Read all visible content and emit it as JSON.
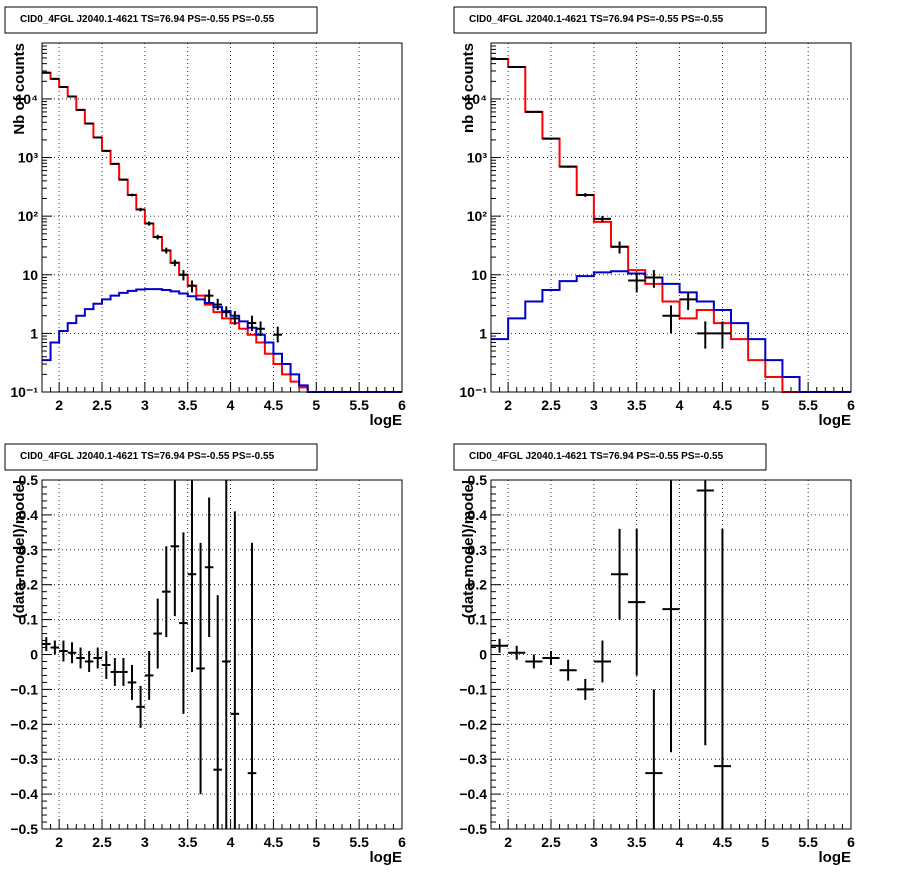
{
  "panel_title": "CID0_4FGL J2040.1-4621 TS=76.94 PS=-0.55 PS=-0.55",
  "chart_data": [
    {
      "type": "line",
      "title": "CID0_4FGL J2040.1-4621 TS=76.94 PS=-0.55 PS=-0.55",
      "xlabel": "logE",
      "ylabel": "Nb of counts",
      "xlim": [
        1.8,
        6
      ],
      "ylim": [
        0.1,
        90000
      ],
      "yscale": "log",
      "grid": true,
      "x_ticks": [
        2,
        2.5,
        3,
        3.5,
        4,
        4.5,
        5,
        5.5,
        6
      ],
      "x_tick_labels": [
        "2",
        "2.5",
        "3",
        "3.5",
        "4",
        "4.5",
        "5",
        "5.5",
        "6"
      ],
      "y_ticks": [
        0.1,
        1,
        10,
        100,
        1000,
        10000
      ],
      "y_tick_labels": [
        "10⁻¹",
        "1",
        "10",
        "10²",
        "10³",
        "10⁴"
      ],
      "bin_edges": [
        1.8,
        1.9,
        2.0,
        2.1,
        2.2,
        2.3,
        2.4,
        2.5,
        2.6,
        2.7,
        2.8,
        2.9,
        3.0,
        3.1,
        3.2,
        3.3,
        3.4,
        3.5,
        3.6,
        3.7,
        3.8,
        3.9,
        4.0,
        4.1,
        4.2,
        4.3,
        4.4,
        4.5,
        4.6,
        4.7,
        4.8,
        4.9,
        5.0,
        5.1,
        5.2,
        5.3,
        5.4,
        5.5,
        5.6,
        5.7,
        5.8,
        5.9,
        6.0
      ],
      "series": [
        {
          "color": "#ff0000",
          "style": "step",
          "values": [
            28000,
            22000,
            16000,
            11000,
            6500,
            3800,
            2200,
            1300,
            780,
            420,
            230,
            130,
            75,
            44,
            26,
            16,
            10,
            6.5,
            4.4,
            3.1,
            2.3,
            1.8,
            1.5,
            1.2,
            0.95,
            0.7,
            0.45,
            0.3,
            0.2,
            0.15,
            0.12,
            0.1,
            0.1,
            0.1,
            0.1,
            0.1,
            0.1,
            0.1,
            0.1,
            0.1,
            0.1,
            0.1
          ]
        },
        {
          "color": "#0000cc",
          "style": "step",
          "values": [
            0.35,
            0.7,
            1.1,
            1.5,
            2.0,
            2.6,
            3.2,
            3.8,
            4.4,
            4.9,
            5.3,
            5.6,
            5.7,
            5.7,
            5.5,
            5.2,
            4.8,
            4.3,
            3.8,
            3.3,
            2.8,
            2.4,
            2.0,
            1.6,
            1.25,
            0.95,
            0.7,
            0.45,
            0.3,
            0.2,
            0.13,
            0.1,
            0.1,
            0.1,
            0.1,
            0.1,
            0.1,
            0.1,
            0.1,
            0.1,
            0.1,
            0.1
          ]
        },
        {
          "color": "#000000",
          "style": "errorbars",
          "x": [
            1.85,
            1.95,
            2.05,
            2.15,
            2.25,
            2.35,
            2.45,
            2.55,
            2.65,
            2.75,
            2.85,
            2.95,
            3.05,
            3.15,
            3.25,
            3.35,
            3.45,
            3.55,
            3.75,
            3.85,
            3.95,
            4.05,
            4.25,
            4.35,
            4.55
          ],
          "values": [
            28000,
            22000,
            16000,
            11000,
            6500,
            3800,
            2200,
            1300,
            780,
            420,
            230,
            130,
            75,
            44,
            26,
            16,
            10,
            6.5,
            4.4,
            3.1,
            2.3,
            1.8,
            1.5,
            1.2,
            0.95
          ],
          "y_err_low": [
            27600,
            21600,
            15800,
            10850,
            6400,
            3720,
            2150,
            1265,
            755,
            402,
            218,
            121,
            69,
            40,
            23,
            14,
            8,
            5,
            3.4,
            2.5,
            1.9,
            1.4,
            1.1,
            0.9,
            0.7
          ],
          "y_err_high": [
            28400,
            22400,
            16200,
            11150,
            6600,
            3880,
            2250,
            1335,
            805,
            438,
            242,
            139,
            81,
            48,
            29,
            18,
            12,
            8,
            5.6,
            3.9,
            2.9,
            2.4,
            2.0,
            1.6,
            1.3
          ]
        }
      ]
    },
    {
      "type": "line",
      "title": "CID0_4FGL J2040.1-4621 TS=76.94 PS=-0.55 PS=-0.55",
      "xlabel": "logE",
      "ylabel": "nb of counts",
      "xlim": [
        1.8,
        6
      ],
      "ylim": [
        0.1,
        90000
      ],
      "yscale": "log",
      "grid": true,
      "x_ticks": [
        2,
        2.5,
        3,
        3.5,
        4,
        4.5,
        5,
        5.5,
        6
      ],
      "x_tick_labels": [
        "2",
        "2.5",
        "3",
        "3.5",
        "4",
        "4.5",
        "5",
        "5.5",
        "6"
      ],
      "y_ticks": [
        0.1,
        1,
        10,
        100,
        1000,
        10000
      ],
      "y_tick_labels": [
        "10⁻¹",
        "1",
        "10",
        "10²",
        "10³",
        "10⁴"
      ],
      "bin_edges": [
        1.8,
        2.0,
        2.2,
        2.4,
        2.6,
        2.8,
        3.0,
        3.2,
        3.4,
        3.6,
        3.8,
        4.0,
        4.2,
        4.4,
        4.6,
        4.8,
        5.0,
        5.2,
        5.4,
        5.6,
        5.8,
        6.0
      ],
      "series": [
        {
          "color": "#ff0000",
          "style": "step",
          "values": [
            48000,
            35000,
            6000,
            2100,
            700,
            230,
            80,
            30,
            12,
            7,
            3.5,
            1.8,
            2.5,
            1.5,
            0.8,
            0.35,
            0.18,
            0.1,
            0.1,
            0.1,
            0.1
          ]
        },
        {
          "color": "#0000cc",
          "style": "step",
          "values": [
            0.8,
            1.8,
            3.5,
            5.5,
            7.8,
            9.5,
            11,
            11.5,
            10.5,
            9,
            7,
            5,
            3.5,
            2.5,
            1.5,
            0.8,
            0.35,
            0.18,
            0.1,
            0.1,
            0.1
          ]
        },
        {
          "color": "#000000",
          "style": "errorbars",
          "x": [
            1.9,
            2.1,
            2.3,
            2.5,
            2.7,
            2.9,
            3.1,
            3.3,
            3.5,
            3.7,
            3.9,
            4.1,
            4.3,
            4.5
          ],
          "values": [
            48000,
            35000,
            6000,
            2100,
            700,
            230,
            90,
            30,
            8,
            9,
            2,
            3.8,
            1.0,
            1.0
          ],
          "y_err_low": [
            47600,
            34700,
            5900,
            2050,
            670,
            213,
            79,
            23,
            5,
            6,
            1,
            2.5,
            0.55,
            0.55
          ],
          "y_err_high": [
            48400,
            35300,
            6100,
            2150,
            730,
            247,
            101,
            37,
            11,
            12,
            3,
            5,
            1.6,
            1.6
          ]
        }
      ]
    },
    {
      "type": "scatter",
      "title": "CID0_4FGL J2040.1-4621 TS=76.94 PS=-0.55 PS=-0.55",
      "xlabel": "logE",
      "ylabel": "(data-model)/model",
      "xlim": [
        1.8,
        6
      ],
      "ylim": [
        -0.5,
        0.5
      ],
      "grid": true,
      "x_ticks": [
        2,
        2.5,
        3,
        3.5,
        4,
        4.5,
        5,
        5.5,
        6
      ],
      "x_tick_labels": [
        "2",
        "2.5",
        "3",
        "3.5",
        "4",
        "4.5",
        "5",
        "5.5",
        "6"
      ],
      "y_ticks": [
        -0.5,
        -0.4,
        -0.3,
        -0.2,
        -0.1,
        0,
        0.1,
        0.2,
        0.3,
        0.4,
        0.5
      ],
      "y_tick_labels": [
        "−0.5",
        "−0.4",
        "−0.3",
        "−0.2",
        "−0.1",
        "0",
        "0.1",
        "0.2",
        "0.3",
        "0.4",
        "0.5"
      ],
      "series": [
        {
          "color": "#000000",
          "x_halfwidth": 0.05,
          "x": [
            1.85,
            1.95,
            2.05,
            2.15,
            2.25,
            2.35,
            2.45,
            2.55,
            2.65,
            2.75,
            2.85,
            2.95,
            3.05,
            3.15,
            3.25,
            3.35,
            3.45,
            3.55,
            3.65,
            3.75,
            3.85,
            3.95,
            4.05,
            4.25
          ],
          "y": [
            0.03,
            0.02,
            0.01,
            0.005,
            -0.01,
            -0.02,
            -0.01,
            -0.03,
            -0.05,
            -0.05,
            -0.08,
            -0.15,
            -0.06,
            0.06,
            0.18,
            0.31,
            0.09,
            0.23,
            -0.04,
            0.25,
            -0.33,
            -0.02,
            -0.17,
            -0.34
          ],
          "y_err": [
            0.02,
            0.02,
            0.03,
            0.03,
            0.03,
            0.03,
            0.03,
            0.04,
            0.04,
            0.04,
            0.05,
            0.06,
            0.07,
            0.1,
            0.13,
            0.2,
            0.26,
            0.28,
            0.36,
            0.2,
            0.5,
            0.52,
            0.58,
            0.66
          ]
        }
      ]
    },
    {
      "type": "scatter",
      "title": "CID0_4FGL J2040.1-4621 TS=76.94 PS=-0.55 PS=-0.55",
      "xlabel": "logE",
      "ylabel": "(data-model)/model",
      "xlim": [
        1.8,
        6
      ],
      "ylim": [
        -0.5,
        0.5
      ],
      "grid": true,
      "x_ticks": [
        2,
        2.5,
        3,
        3.5,
        4,
        4.5,
        5,
        5.5,
        6
      ],
      "x_tick_labels": [
        "2",
        "2.5",
        "3",
        "3.5",
        "4",
        "4.5",
        "5",
        "5.5",
        "6"
      ],
      "y_ticks": [
        -0.5,
        -0.4,
        -0.3,
        -0.2,
        -0.1,
        0,
        0.1,
        0.2,
        0.3,
        0.4,
        0.5
      ],
      "y_tick_labels": [
        "−0.5",
        "−0.4",
        "−0.3",
        "−0.2",
        "−0.1",
        "0",
        "0.1",
        "0.2",
        "0.3",
        "0.4",
        "0.5"
      ],
      "series": [
        {
          "color": "#000000",
          "x_halfwidth": 0.1,
          "x": [
            1.9,
            2.1,
            2.3,
            2.5,
            2.7,
            2.9,
            3.1,
            3.3,
            3.5,
            3.7,
            3.9,
            4.3,
            4.5
          ],
          "y": [
            0.025,
            0.005,
            -0.02,
            -0.01,
            -0.045,
            -0.1,
            -0.02,
            0.23,
            0.15,
            -0.34,
            0.13,
            0.47,
            -0.32
          ],
          "y_err": [
            0.02,
            0.02,
            0.02,
            0.02,
            0.03,
            0.03,
            0.06,
            0.13,
            0.21,
            0.24,
            0.41,
            0.73,
            0.68
          ]
        }
      ]
    }
  ]
}
